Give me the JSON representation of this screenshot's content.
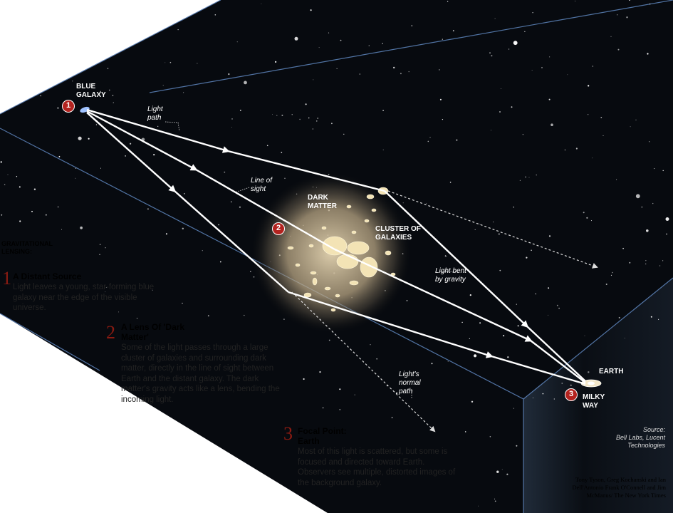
{
  "title": "GRAVITATIONAL LENSING:",
  "labels": {
    "blue_galaxy": "BLUE GALAXY",
    "light_path": "Light path",
    "line_of_sight": "Line of sight",
    "dark_matter": "DARK MATTER",
    "cluster": "CLUSTER OF GALAXIES",
    "light_bent": "Light bent by gravity",
    "normal_path": "Light's normal path",
    "earth": "EARTH",
    "milky_way": "MILKY WAY"
  },
  "badges": [
    "1",
    "2",
    "3"
  ],
  "sections": [
    {
      "number": "1",
      "title": "A Distant Source",
      "body": "Light leaves a young, star-forming blue galaxy near the edge of the visible universe."
    },
    {
      "number": "2",
      "title": "A Lens Of 'Dark Matter'",
      "body": "Some of the light passes through a large cluster of galaxies and surrounding dark matter, directly in the line of sight between Earth and the distant galaxy. The dark matter's gravity acts like a lens, bending the incoming light."
    },
    {
      "number": "3",
      "title": "Focal Point: Earth",
      "body": "Most of this light is scattered, but some is focused and directed toward Earth. Observers see multiple, distorted images of the background galaxy."
    }
  ],
  "source": {
    "label": "Source:",
    "text": "Bell Labs, Lucent Technologies"
  },
  "credit": "Tony Tyson, Greg Kochanski and Ian Dell'Antonio Frank O'Connell and Jim McManus/ The New York Times",
  "colors": {
    "space": "#05070b",
    "box_edge": "#5a7fb5",
    "badge": "#b3231f",
    "section_number": "#8a1b12",
    "glow": "#d8c7a3"
  }
}
